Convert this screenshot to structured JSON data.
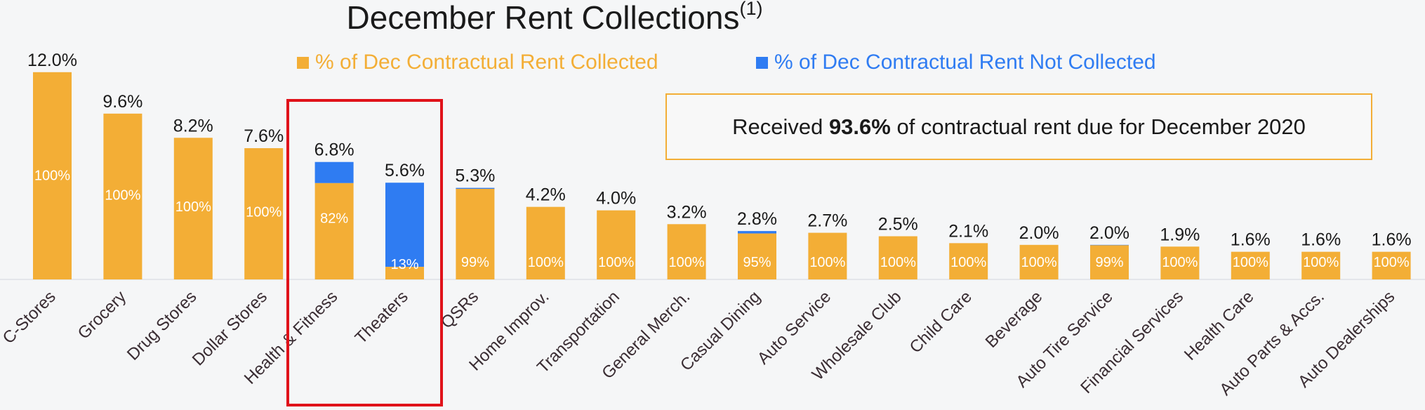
{
  "title": "December Rent Collections",
  "title_footnote": "(1)",
  "legend": {
    "collected": "% of Dec Contractual Rent Collected",
    "not_collected": "% of Dec Contractual Rent Not Collected"
  },
  "callout": {
    "prefix": "Received ",
    "value": "93.6%",
    "suffix": " of contractual rent due for December 2020"
  },
  "colors": {
    "collected": "#f3ae36",
    "not_collected": "#2f7cf2",
    "highlight_box": "#e0121a"
  },
  "highlighted_categories": [
    "Health & Fitness",
    "Theaters"
  ],
  "chart_data": {
    "type": "bar",
    "stacked": true,
    "title": "December Rent Collections",
    "categories": [
      "C-Stores",
      "Grocery",
      "Drug Stores",
      "Dollar Stores",
      "Health & Fitness",
      "Theaters",
      "QSRs",
      "Home Improv.",
      "Transportation",
      "General Merch.",
      "Casual Dining",
      "Auto Service",
      "Wholesale Club",
      "Child Care",
      "Beverage",
      "Auto Tire Service",
      "Financial Services",
      "Health Care",
      "Auto Parts & Accs.",
      "Auto Dealerships"
    ],
    "totals": [
      12.0,
      9.6,
      8.2,
      7.6,
      6.8,
      5.6,
      5.3,
      4.2,
      4.0,
      3.2,
      2.8,
      2.7,
      2.5,
      2.1,
      2.0,
      2.0,
      1.9,
      1.6,
      1.6,
      1.6
    ],
    "total_labels": [
      "12.0%",
      "9.6%",
      "8.2%",
      "7.6%",
      "6.8%",
      "5.6%",
      "5.3%",
      "4.2%",
      "4.0%",
      "3.2%",
      "2.8%",
      "2.7%",
      "2.5%",
      "2.1%",
      "2.0%",
      "2.0%",
      "1.9%",
      "1.6%",
      "1.6%",
      "1.6%"
    ],
    "collected_pct": [
      100,
      100,
      100,
      100,
      82,
      13,
      99,
      100,
      100,
      100,
      95,
      100,
      100,
      100,
      100,
      99,
      100,
      100,
      100,
      100
    ],
    "collected_labels": [
      "100%",
      "100%",
      "100%",
      "100%",
      "82%",
      "13%",
      "99%",
      "100%",
      "100%",
      "100%",
      "95%",
      "100%",
      "100%",
      "100%",
      "100%",
      "99%",
      "100%",
      "100%",
      "100%",
      "100%"
    ],
    "series": [
      {
        "name": "% of Dec Contractual Rent Collected",
        "color": "#f3ae36"
      },
      {
        "name": "% of Dec Contractual Rent Not Collected",
        "color": "#2f7cf2"
      }
    ],
    "legend_position": "top",
    "grid": false
  }
}
